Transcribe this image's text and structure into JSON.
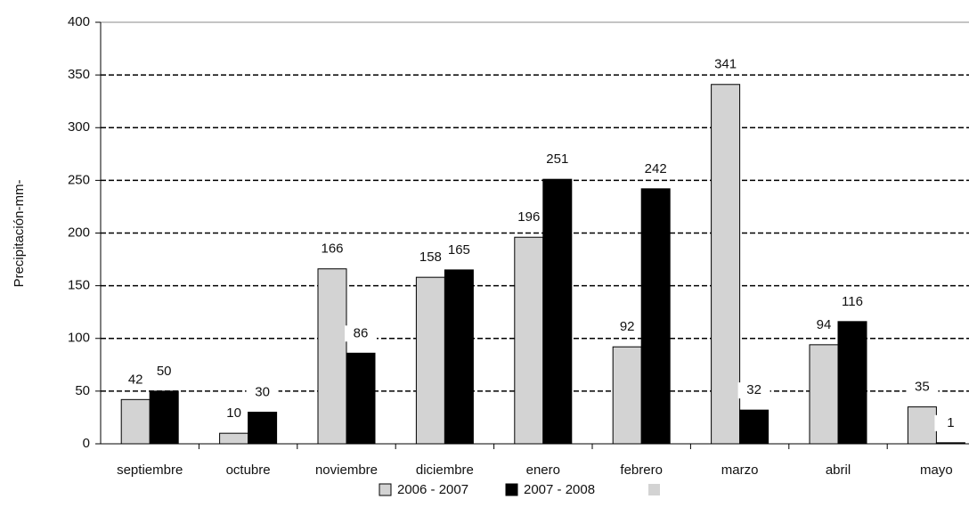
{
  "chart_data": {
    "type": "bar",
    "y_label": "Precipitación-mm-",
    "categories": [
      "septiembre",
      "octubre",
      "noviembre",
      "diciembre",
      "enero",
      "febrero",
      "marzo",
      "abril",
      "mayo"
    ],
    "series": [
      {
        "name": "2006 - 2007",
        "color": "#d3d3d3",
        "values": [
          42,
          10,
          166,
          158,
          196,
          92,
          341,
          94,
          35
        ]
      },
      {
        "name": "2007 - 2008",
        "color": "#000000",
        "values": [
          50,
          30,
          86,
          165,
          251,
          242,
          32,
          116,
          1
        ]
      }
    ],
    "ylim": [
      0,
      400
    ],
    "yticks": [
      0,
      50,
      100,
      150,
      200,
      250,
      300,
      350,
      400
    ],
    "grid": true
  }
}
